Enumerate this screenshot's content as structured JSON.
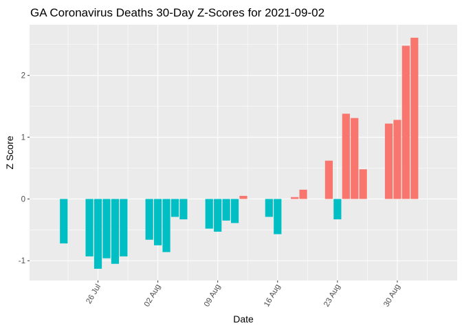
{
  "chart_data": {
    "type": "bar",
    "title": "GA Coronavirus Deaths 30-Day Z-Scores for 2021-09-02",
    "xlabel": "Date",
    "ylabel": "Z Score",
    "ylim": [
      -1.32,
      2.82
    ],
    "y_ticks": [
      -1,
      0,
      1,
      2
    ],
    "y_tick_labels": [
      "-1",
      "0",
      "1",
      "2"
    ],
    "x_ticks": [
      {
        "label": "26 Jul",
        "date": "2021-07-26"
      },
      {
        "label": "02 Aug",
        "date": "2021-08-02"
      },
      {
        "label": "09 Aug",
        "date": "2021-08-09"
      },
      {
        "label": "16 Aug",
        "date": "2021-08-16"
      },
      {
        "label": "23 Aug",
        "date": "2021-08-23"
      },
      {
        "label": "30 Aug",
        "date": "2021-08-30"
      }
    ],
    "x_start": "2021-07-18",
    "x_end": "2021-09-06",
    "positive_color": "#F8766D",
    "negative_color": "#00BFC4",
    "panel_color": "#EBEBEB",
    "grid_color": "#FFFFFF",
    "series": [
      {
        "name": "Z Score",
        "dates": [
          "2021-07-22",
          "2021-07-25",
          "2021-07-26",
          "2021-07-27",
          "2021-07-28",
          "2021-07-29",
          "2021-08-01",
          "2021-08-02",
          "2021-08-03",
          "2021-08-04",
          "2021-08-05",
          "2021-08-08",
          "2021-08-09",
          "2021-08-10",
          "2021-08-11",
          "2021-08-12",
          "2021-08-15",
          "2021-08-16",
          "2021-08-18",
          "2021-08-19",
          "2021-08-22",
          "2021-08-23",
          "2021-08-24",
          "2021-08-25",
          "2021-08-26",
          "2021-08-29",
          "2021-08-30",
          "2021-08-31",
          "2021-09-01"
        ],
        "values": [
          -0.72,
          -0.93,
          -1.13,
          -0.96,
          -1.05,
          -0.93,
          -0.66,
          -0.75,
          -0.86,
          -0.29,
          -0.33,
          -0.48,
          -0.53,
          -0.35,
          -0.39,
          0.05,
          -0.29,
          -0.57,
          0.03,
          0.15,
          0.62,
          -0.33,
          1.38,
          1.31,
          0.48,
          1.22,
          1.28,
          2.48,
          2.61
        ]
      }
    ]
  }
}
